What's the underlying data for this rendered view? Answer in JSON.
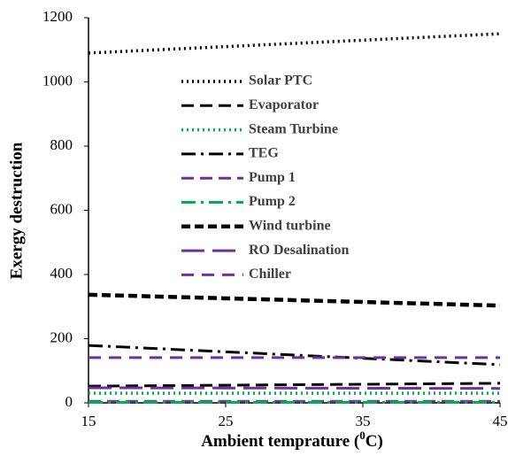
{
  "chart_data": {
    "type": "line",
    "xlabel": {
      "text": "Ambient temprature (",
      "sup": "0",
      "tail": "C)"
    },
    "ylabel": "Exergy destruction",
    "x": [
      15,
      45
    ],
    "xlim": [
      15,
      45
    ],
    "xticks": [
      15,
      25,
      35,
      45
    ],
    "ylim": [
      0,
      1200
    ],
    "yticks": [
      0,
      200,
      400,
      600,
      800,
      1000,
      1200
    ],
    "legend": "upper-center",
    "series": [
      {
        "name": "Solar PTC",
        "color": "#000000",
        "style": "dotted",
        "values": [
          1090,
          1150
        ]
      },
      {
        "name": "Evaporator",
        "color": "#000000",
        "style": "dashed",
        "values": [
          52,
          61
        ]
      },
      {
        "name": "Steam Turbine",
        "color": "#00b050",
        "style": "dotted",
        "values": [
          30,
          30
        ]
      },
      {
        "name": "TEG",
        "color": "#000000",
        "style": "dashdot",
        "values": [
          179,
          119
        ]
      },
      {
        "name": "Pump 1",
        "color": "#7030a0",
        "style": "dashed",
        "values": [
          5,
          5
        ]
      },
      {
        "name": "Pump 2",
        "color": "#00b050",
        "style": "dashdot",
        "values": [
          2,
          2
        ]
      },
      {
        "name": "Wind turbine",
        "color": "#000000",
        "style": "heavydash",
        "values": [
          337,
          303
        ]
      },
      {
        "name": "RO Desalination",
        "color": "#7030a0",
        "style": "longdash",
        "values": [
          47,
          45
        ]
      },
      {
        "name": "Chiller",
        "color": "#7030a0",
        "style": "wide-dash",
        "values": [
          141,
          141
        ]
      }
    ]
  }
}
